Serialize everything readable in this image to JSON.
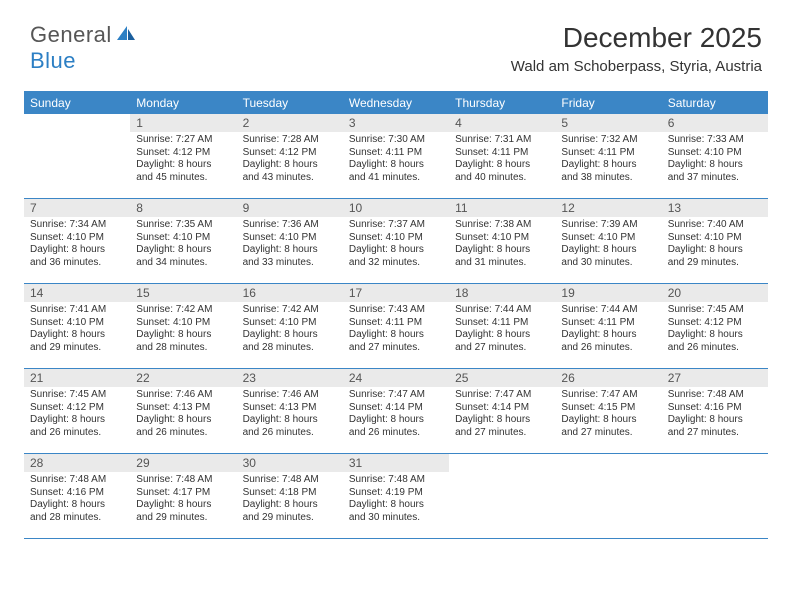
{
  "brand": {
    "part1": "General",
    "part2": "Blue"
  },
  "title": "December 2025",
  "location": "Wald am Schoberpass, Styria, Austria",
  "colors": {
    "header_bg": "#3b86c6",
    "num_bg": "#eaeaea",
    "text": "#333333",
    "logo_gray": "#565656",
    "logo_blue": "#2c7fc4",
    "background": "#ffffff"
  },
  "day_names": [
    "Sunday",
    "Monday",
    "Tuesday",
    "Wednesday",
    "Thursday",
    "Friday",
    "Saturday"
  ],
  "weeks": [
    [
      {
        "num": "",
        "sunrise": "",
        "sunset": "",
        "daylight": ""
      },
      {
        "num": "1",
        "sunrise": "Sunrise: 7:27 AM",
        "sunset": "Sunset: 4:12 PM",
        "daylight": "Daylight: 8 hours and 45 minutes."
      },
      {
        "num": "2",
        "sunrise": "Sunrise: 7:28 AM",
        "sunset": "Sunset: 4:12 PM",
        "daylight": "Daylight: 8 hours and 43 minutes."
      },
      {
        "num": "3",
        "sunrise": "Sunrise: 7:30 AM",
        "sunset": "Sunset: 4:11 PM",
        "daylight": "Daylight: 8 hours and 41 minutes."
      },
      {
        "num": "4",
        "sunrise": "Sunrise: 7:31 AM",
        "sunset": "Sunset: 4:11 PM",
        "daylight": "Daylight: 8 hours and 40 minutes."
      },
      {
        "num": "5",
        "sunrise": "Sunrise: 7:32 AM",
        "sunset": "Sunset: 4:11 PM",
        "daylight": "Daylight: 8 hours and 38 minutes."
      },
      {
        "num": "6",
        "sunrise": "Sunrise: 7:33 AM",
        "sunset": "Sunset: 4:10 PM",
        "daylight": "Daylight: 8 hours and 37 minutes."
      }
    ],
    [
      {
        "num": "7",
        "sunrise": "Sunrise: 7:34 AM",
        "sunset": "Sunset: 4:10 PM",
        "daylight": "Daylight: 8 hours and 36 minutes."
      },
      {
        "num": "8",
        "sunrise": "Sunrise: 7:35 AM",
        "sunset": "Sunset: 4:10 PM",
        "daylight": "Daylight: 8 hours and 34 minutes."
      },
      {
        "num": "9",
        "sunrise": "Sunrise: 7:36 AM",
        "sunset": "Sunset: 4:10 PM",
        "daylight": "Daylight: 8 hours and 33 minutes."
      },
      {
        "num": "10",
        "sunrise": "Sunrise: 7:37 AM",
        "sunset": "Sunset: 4:10 PM",
        "daylight": "Daylight: 8 hours and 32 minutes."
      },
      {
        "num": "11",
        "sunrise": "Sunrise: 7:38 AM",
        "sunset": "Sunset: 4:10 PM",
        "daylight": "Daylight: 8 hours and 31 minutes."
      },
      {
        "num": "12",
        "sunrise": "Sunrise: 7:39 AM",
        "sunset": "Sunset: 4:10 PM",
        "daylight": "Daylight: 8 hours and 30 minutes."
      },
      {
        "num": "13",
        "sunrise": "Sunrise: 7:40 AM",
        "sunset": "Sunset: 4:10 PM",
        "daylight": "Daylight: 8 hours and 29 minutes."
      }
    ],
    [
      {
        "num": "14",
        "sunrise": "Sunrise: 7:41 AM",
        "sunset": "Sunset: 4:10 PM",
        "daylight": "Daylight: 8 hours and 29 minutes."
      },
      {
        "num": "15",
        "sunrise": "Sunrise: 7:42 AM",
        "sunset": "Sunset: 4:10 PM",
        "daylight": "Daylight: 8 hours and 28 minutes."
      },
      {
        "num": "16",
        "sunrise": "Sunrise: 7:42 AM",
        "sunset": "Sunset: 4:10 PM",
        "daylight": "Daylight: 8 hours and 28 minutes."
      },
      {
        "num": "17",
        "sunrise": "Sunrise: 7:43 AM",
        "sunset": "Sunset: 4:11 PM",
        "daylight": "Daylight: 8 hours and 27 minutes."
      },
      {
        "num": "18",
        "sunrise": "Sunrise: 7:44 AM",
        "sunset": "Sunset: 4:11 PM",
        "daylight": "Daylight: 8 hours and 27 minutes."
      },
      {
        "num": "19",
        "sunrise": "Sunrise: 7:44 AM",
        "sunset": "Sunset: 4:11 PM",
        "daylight": "Daylight: 8 hours and 26 minutes."
      },
      {
        "num": "20",
        "sunrise": "Sunrise: 7:45 AM",
        "sunset": "Sunset: 4:12 PM",
        "daylight": "Daylight: 8 hours and 26 minutes."
      }
    ],
    [
      {
        "num": "21",
        "sunrise": "Sunrise: 7:45 AM",
        "sunset": "Sunset: 4:12 PM",
        "daylight": "Daylight: 8 hours and 26 minutes."
      },
      {
        "num": "22",
        "sunrise": "Sunrise: 7:46 AM",
        "sunset": "Sunset: 4:13 PM",
        "daylight": "Daylight: 8 hours and 26 minutes."
      },
      {
        "num": "23",
        "sunrise": "Sunrise: 7:46 AM",
        "sunset": "Sunset: 4:13 PM",
        "daylight": "Daylight: 8 hours and 26 minutes."
      },
      {
        "num": "24",
        "sunrise": "Sunrise: 7:47 AM",
        "sunset": "Sunset: 4:14 PM",
        "daylight": "Daylight: 8 hours and 26 minutes."
      },
      {
        "num": "25",
        "sunrise": "Sunrise: 7:47 AM",
        "sunset": "Sunset: 4:14 PM",
        "daylight": "Daylight: 8 hours and 27 minutes."
      },
      {
        "num": "26",
        "sunrise": "Sunrise: 7:47 AM",
        "sunset": "Sunset: 4:15 PM",
        "daylight": "Daylight: 8 hours and 27 minutes."
      },
      {
        "num": "27",
        "sunrise": "Sunrise: 7:48 AM",
        "sunset": "Sunset: 4:16 PM",
        "daylight": "Daylight: 8 hours and 27 minutes."
      }
    ],
    [
      {
        "num": "28",
        "sunrise": "Sunrise: 7:48 AM",
        "sunset": "Sunset: 4:16 PM",
        "daylight": "Daylight: 8 hours and 28 minutes."
      },
      {
        "num": "29",
        "sunrise": "Sunrise: 7:48 AM",
        "sunset": "Sunset: 4:17 PM",
        "daylight": "Daylight: 8 hours and 29 minutes."
      },
      {
        "num": "30",
        "sunrise": "Sunrise: 7:48 AM",
        "sunset": "Sunset: 4:18 PM",
        "daylight": "Daylight: 8 hours and 29 minutes."
      },
      {
        "num": "31",
        "sunrise": "Sunrise: 7:48 AM",
        "sunset": "Sunset: 4:19 PM",
        "daylight": "Daylight: 8 hours and 30 minutes."
      },
      {
        "num": "",
        "sunrise": "",
        "sunset": "",
        "daylight": ""
      },
      {
        "num": "",
        "sunrise": "",
        "sunset": "",
        "daylight": ""
      },
      {
        "num": "",
        "sunrise": "",
        "sunset": "",
        "daylight": ""
      }
    ]
  ]
}
